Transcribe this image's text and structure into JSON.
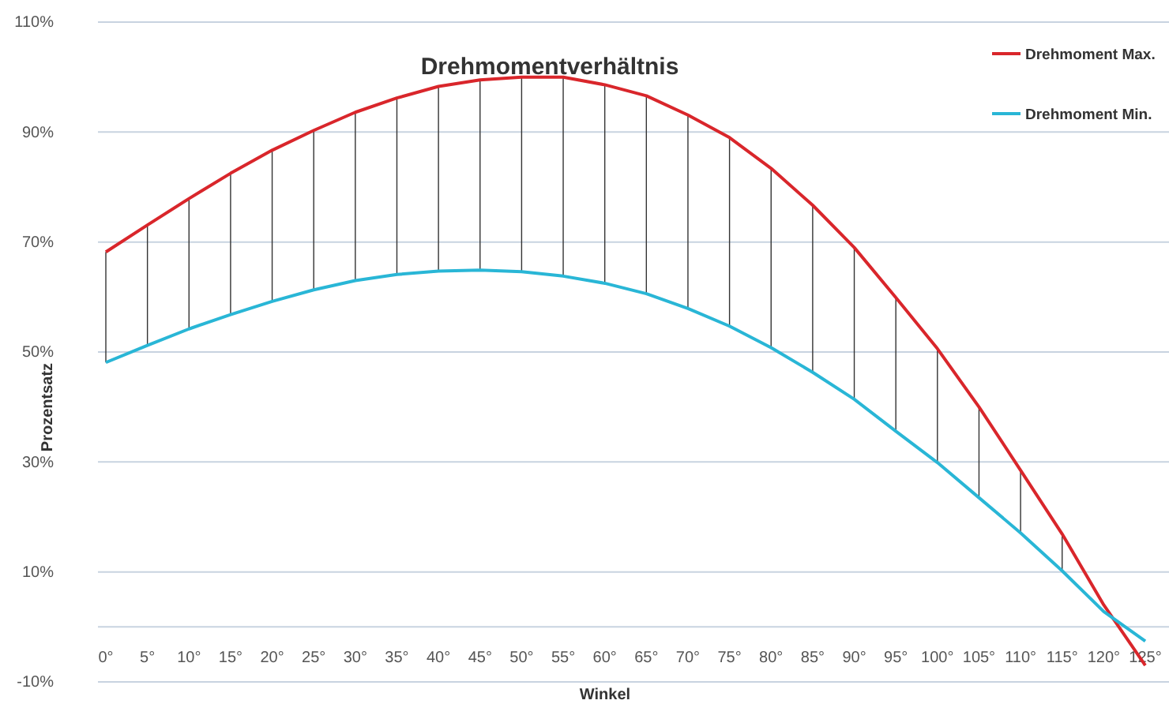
{
  "chart_data": {
    "type": "line",
    "title": "Drehmomentverhältnis",
    "xlabel": "Winkel",
    "ylabel": "Prozentsatz",
    "categories": [
      "0°",
      "5°",
      "10°",
      "15°",
      "20°",
      "25°",
      "30°",
      "35°",
      "40°",
      "45°",
      "50°",
      "55°",
      "60°",
      "65°",
      "70°",
      "75°",
      "80°",
      "85°",
      "90°",
      "95°",
      "100°",
      "105°",
      "110°",
      "115°",
      "120°",
      "125°"
    ],
    "series": [
      {
        "name": "Drehmoment Max.",
        "color": "#d9262b",
        "values": [
          68.2,
          73.1,
          77.9,
          82.5,
          86.7,
          90.3,
          93.6,
          96.2,
          98.3,
          99.5,
          100,
          100,
          98.6,
          96.6,
          93.1,
          89,
          83.4,
          76.7,
          69,
          59.9,
          50.6,
          40,
          28.5,
          16.9,
          4,
          -7
        ],
        "errors": [
          [
            48.1,
            68.2
          ],
          [
            51.2,
            73.1
          ],
          [
            54.2,
            77.9
          ],
          [
            56.8,
            82.5
          ],
          [
            59.2,
            86.7
          ],
          [
            61.3,
            90.3
          ],
          [
            63,
            93.6
          ],
          [
            64.1,
            96.2
          ],
          [
            64.7,
            98.3
          ],
          [
            64.9,
            99.5
          ],
          [
            64.6,
            100
          ],
          [
            63.8,
            100
          ],
          [
            62.5,
            98.6
          ],
          [
            60.6,
            96.6
          ],
          [
            57.9,
            93.1
          ],
          [
            54.7,
            89
          ],
          [
            50.8,
            83.4
          ],
          [
            46.3,
            76.7
          ],
          [
            41.4,
            69
          ],
          [
            35.6,
            59.9
          ],
          [
            29.9,
            50.6
          ],
          [
            23.5,
            40
          ],
          [
            17.1,
            28.5
          ],
          [
            10.2,
            16.9
          ],
          null,
          null
        ]
      },
      {
        "name": "Drehmoment Min.",
        "color": "#29b6d6",
        "values": [
          48.1,
          51.2,
          54.2,
          56.8,
          59.2,
          61.3,
          63,
          64.1,
          64.7,
          64.9,
          64.6,
          63.8,
          62.5,
          60.6,
          57.9,
          54.7,
          50.8,
          46.3,
          41.4,
          35.6,
          29.9,
          23.5,
          17.1,
          10.2,
          2.8,
          -2.6
        ]
      }
    ],
    "ylim": [
      -10,
      110
    ],
    "yticks": [
      {
        "value": -10,
        "label": "-10%"
      },
      {
        "value": 10,
        "label": "10%"
      },
      {
        "value": 30,
        "label": "30%"
      },
      {
        "value": 50,
        "label": "50%"
      },
      {
        "value": 70,
        "label": "70%"
      },
      {
        "value": 90,
        "label": "90%"
      },
      {
        "value": 110,
        "label": "110%"
      }
    ],
    "grid": "y",
    "legend": "top right",
    "marker": "none",
    "line_style": "solid"
  }
}
